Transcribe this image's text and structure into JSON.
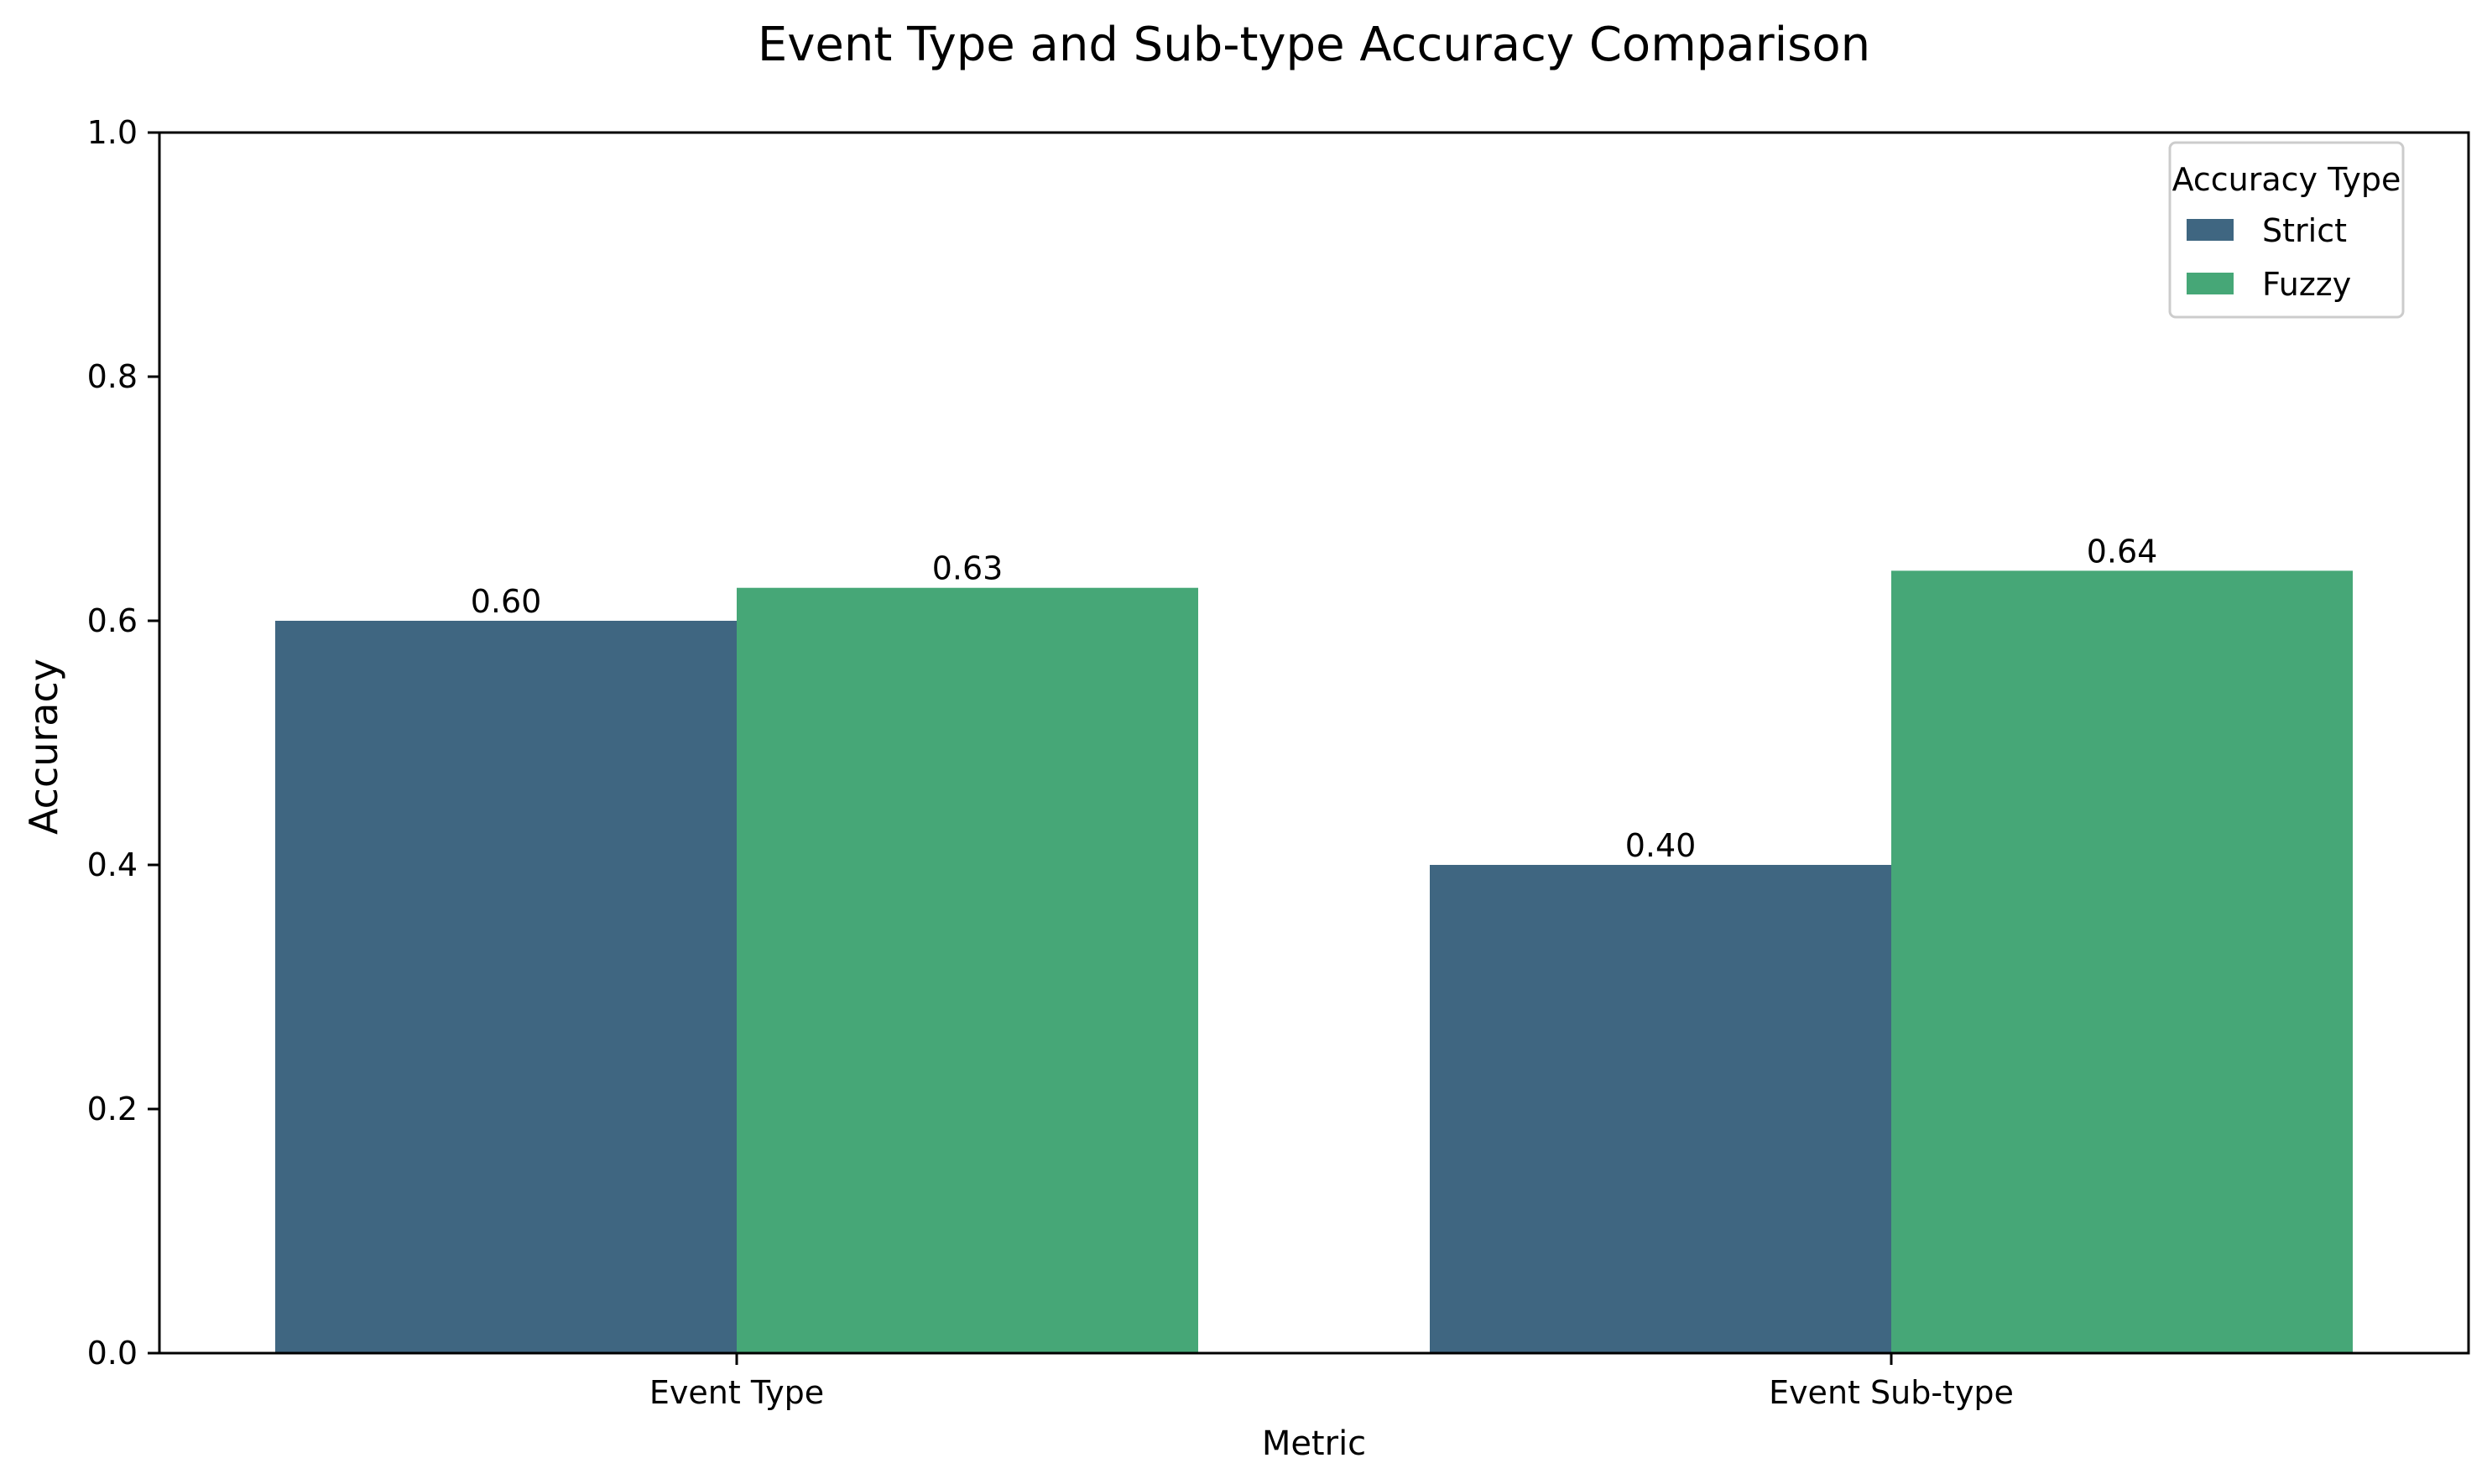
{
  "chart_data": {
    "type": "bar",
    "title": "Event Type and Sub-type Accuracy Comparison",
    "xlabel": "Metric",
    "ylabel": "Accuracy",
    "categories": [
      "Event Type",
      "Event Sub-type"
    ],
    "series": [
      {
        "name": "Strict",
        "values": [
          0.6,
          0.4
        ],
        "labels": [
          "0.60",
          "0.40"
        ],
        "color": "#3f6681"
      },
      {
        "name": "Fuzzy",
        "values": [
          0.627,
          0.641
        ],
        "labels": [
          "0.63",
          "0.64"
        ],
        "color": "#46a777"
      }
    ],
    "ylim": [
      0,
      1.0
    ],
    "yticks": [
      0.0,
      0.2,
      0.4,
      0.6,
      0.8,
      1.0
    ],
    "ytick_labels": [
      "0.0",
      "0.2",
      "0.4",
      "0.6",
      "0.8",
      "1.0"
    ],
    "grid": false,
    "legend": {
      "title": "Accuracy Type",
      "placement": "top-right"
    }
  }
}
